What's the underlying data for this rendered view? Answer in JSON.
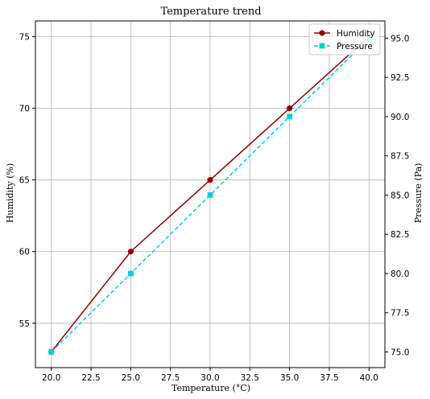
{
  "chart_data": {
    "type": "line",
    "title": "Temperature trend",
    "xlabel": "Temperature (°C)",
    "ylabel_left": "Humidity (%)",
    "ylabel_right": "Pressure (Pa)",
    "x": [
      20,
      25,
      30,
      35,
      40
    ],
    "xlim": [
      19,
      41
    ],
    "ylim_left": [
      51.9,
      76.1
    ],
    "ylim_right": [
      74,
      96.1
    ],
    "x_ticks": [
      "20.0",
      "22.5",
      "25.0",
      "27.5",
      "30.0",
      "32.5",
      "35.0",
      "37.5",
      "40.0"
    ],
    "y_left_ticks": [
      "55",
      "60",
      "65",
      "70",
      "75"
    ],
    "y_right_ticks": [
      "75.0",
      "77.5",
      "80.0",
      "82.5",
      "85.0",
      "87.5",
      "90.0",
      "92.5",
      "95.0"
    ],
    "grid": true,
    "legend_position": "top-right",
    "series": [
      {
        "name": "Humidity",
        "axis": "left",
        "values": [
          53,
          60,
          65,
          70,
          75
        ],
        "color": "#8b0000",
        "linestyle": "solid",
        "marker": "circle"
      },
      {
        "name": "Pressure",
        "axis": "right",
        "values": [
          75,
          80,
          85,
          90,
          95
        ],
        "color": "#00ced1",
        "linestyle": "dashed",
        "marker": "square"
      }
    ]
  }
}
